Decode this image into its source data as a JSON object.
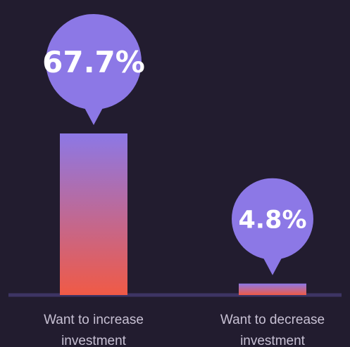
{
  "chart_data": {
    "type": "bar",
    "unit": "%",
    "categories": [
      [
        "Want to increase",
        "investment"
      ],
      [
        "Want to decrease",
        "investment"
      ]
    ],
    "values": [
      67.7,
      4.8
    ],
    "data_labels": [
      "67.7%",
      "4.8%"
    ],
    "ylim": [
      0,
      67.7
    ],
    "grid": false,
    "legend": "none",
    "colors": {
      "background": "#221c2f",
      "bar_top": "#8c78e6",
      "bar_bottom": "#f05a46",
      "bubble": "#8c78e6",
      "baseline": "#3d3464",
      "label_text": "#c7c0d3",
      "bubble_text": "#ffffff"
    }
  }
}
